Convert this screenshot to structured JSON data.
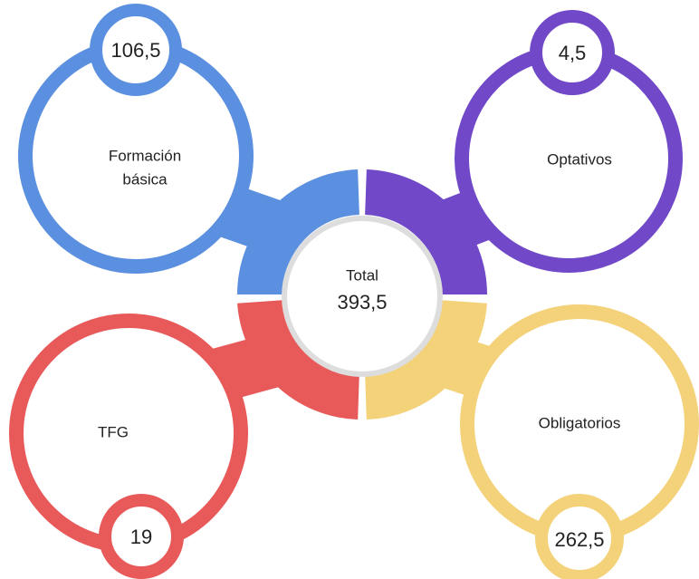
{
  "center": {
    "label": "Total",
    "value": "393,5"
  },
  "nodes": [
    {
      "label": [
        "Formación",
        "básica"
      ],
      "value": "106,5"
    },
    {
      "label": [
        "Optativos"
      ],
      "value": "4,5"
    },
    {
      "label": [
        "TFG"
      ],
      "value": "19"
    },
    {
      "label": [
        "Obligatorios"
      ],
      "value": "262,5"
    }
  ]
}
